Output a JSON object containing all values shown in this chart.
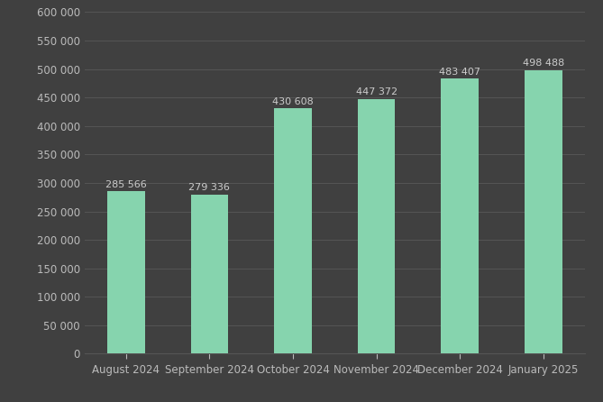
{
  "categories": [
    "August 2024",
    "September 2024",
    "October 2024",
    "November 2024",
    "December 2024",
    "January 2025"
  ],
  "values": [
    285566,
    279336,
    430608,
    447372,
    483407,
    498488
  ],
  "bar_color": "#86d4ae",
  "background_color": "#404040",
  "plot_bg_color": "#404040",
  "grid_color": "#555555",
  "text_color": "#bbbbbb",
  "label_color": "#cccccc",
  "ylim": [
    0,
    600000
  ],
  "yticks": [
    0,
    50000,
    100000,
    150000,
    200000,
    250000,
    300000,
    350000,
    400000,
    450000,
    500000,
    550000,
    600000
  ],
  "bar_width": 0.45,
  "annotation_fontsize": 8.0,
  "tick_fontsize": 8.5
}
